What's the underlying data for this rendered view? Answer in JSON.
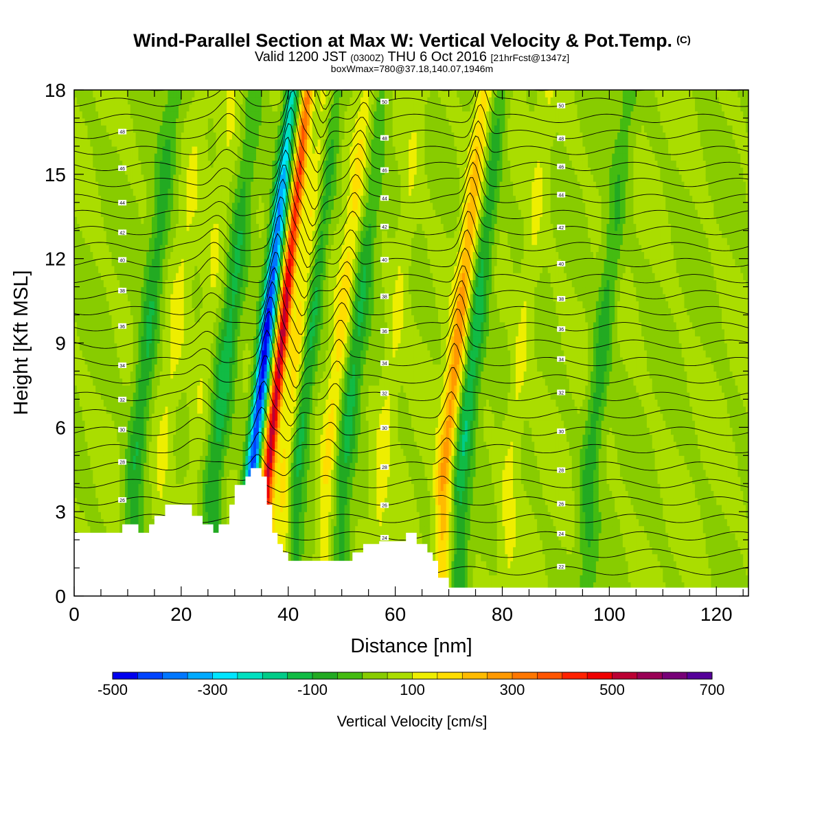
{
  "header": {
    "title": "Wind-Parallel Section at Max W: Vertical Velocity & Pot.Temp.",
    "title_mark": "(C)",
    "subtitle_pre": "Valid 1200 JST",
    "subtitle_utc": "(0300Z)",
    "subtitle_mid": "THU 6 Oct 2016",
    "subtitle_fcst": "[21hrFcst@1347z]",
    "info": "boxWmax=780@37.18,140.07,1946m"
  },
  "chart_data": {
    "type": "heatmap",
    "xlabel": "Distance [nm]",
    "ylabel": "Height [Kft MSL]",
    "xlim": [
      0,
      126
    ],
    "ylim": [
      0,
      18
    ],
    "x_ticks": [
      0,
      20,
      40,
      60,
      80,
      100,
      120
    ],
    "y_ticks": [
      0,
      3,
      6,
      9,
      12,
      15,
      18
    ],
    "colorbar": {
      "label": "Vertical Velocity [cm/s]",
      "min": -500,
      "max": 700,
      "step": 50,
      "tick_labels": [
        -500,
        -300,
        -100,
        100,
        300,
        500,
        700
      ],
      "colors": [
        "#0000ee",
        "#0044ff",
        "#0077ff",
        "#00aaff",
        "#00e5ff",
        "#00e0c0",
        "#00cc88",
        "#11bb44",
        "#22aa22",
        "#44bb11",
        "#88cc00",
        "#aadd00",
        "#eeee00",
        "#ffdd00",
        "#ffbb00",
        "#ff9900",
        "#ff7700",
        "#ff5500",
        "#ff2200",
        "#ee0000",
        "#bb0033",
        "#990055",
        "#770077",
        "#550099"
      ]
    },
    "background_w": 50,
    "updrafts_cm_s": [
      {
        "x": 36,
        "peak": 530
      },
      {
        "x": 39.5,
        "peak": 230
      },
      {
        "x": 47,
        "peak": 180
      },
      {
        "x": 69,
        "peak": 280
      },
      {
        "x": 57,
        "peak": 120
      },
      {
        "x": 81,
        "peak": 120
      },
      {
        "x": 16,
        "peak": 110
      },
      {
        "x": 22,
        "peak": 100
      }
    ],
    "downdrafts_cm_s": [
      {
        "x": 33,
        "peak": -480
      },
      {
        "x": 41,
        "peak": -170
      },
      {
        "x": 72,
        "peak": -150
      },
      {
        "x": 50,
        "peak": -110
      },
      {
        "x": 11,
        "peak": -110
      },
      {
        "x": 26,
        "peak": -120
      },
      {
        "x": 96,
        "peak": -90
      }
    ],
    "terrain_kft": [
      [
        0,
        2.25
      ],
      [
        9,
        2.25
      ],
      [
        9,
        2.55
      ],
      [
        12,
        2.55
      ],
      [
        12,
        2.25
      ],
      [
        14,
        2.25
      ],
      [
        14,
        2.55
      ],
      [
        15,
        2.55
      ],
      [
        15,
        2.85
      ],
      [
        17,
        2.85
      ],
      [
        17,
        3.25
      ],
      [
        22,
        3.25
      ],
      [
        22,
        2.85
      ],
      [
        24,
        2.85
      ],
      [
        24,
        2.55
      ],
      [
        26,
        2.55
      ],
      [
        26,
        2.25
      ],
      [
        27,
        2.25
      ],
      [
        27,
        2.55
      ],
      [
        29,
        2.55
      ],
      [
        29,
        3.25
      ],
      [
        30,
        3.25
      ],
      [
        30,
        3.95
      ],
      [
        32,
        3.95
      ],
      [
        32,
        4.25
      ],
      [
        33,
        4.25
      ],
      [
        33,
        4.55
      ],
      [
        35,
        4.55
      ],
      [
        35,
        4.25
      ],
      [
        36,
        4.25
      ],
      [
        36,
        3.25
      ],
      [
        37,
        3.25
      ],
      [
        37,
        2.25
      ],
      [
        38,
        2.25
      ],
      [
        38,
        1.85
      ],
      [
        39,
        1.85
      ],
      [
        39,
        1.55
      ],
      [
        40,
        1.55
      ],
      [
        40,
        1.25
      ],
      [
        52,
        1.25
      ],
      [
        52,
        1.55
      ],
      [
        54,
        1.55
      ],
      [
        54,
        1.85
      ],
      [
        57,
        1.85
      ],
      [
        57,
        1.95
      ],
      [
        62,
        1.95
      ],
      [
        62,
        2.25
      ],
      [
        64,
        2.25
      ],
      [
        64,
        1.85
      ],
      [
        66,
        1.85
      ],
      [
        66,
        1.55
      ],
      [
        67,
        1.55
      ],
      [
        67,
        1.25
      ],
      [
        68,
        1.25
      ],
      [
        68,
        0.65
      ],
      [
        70,
        0.65
      ],
      [
        70,
        0.3
      ],
      [
        126,
        0.3
      ]
    ],
    "theta_contours_k": {
      "min": 22,
      "max": 52,
      "interval": 1,
      "label_interval": 2
    }
  }
}
